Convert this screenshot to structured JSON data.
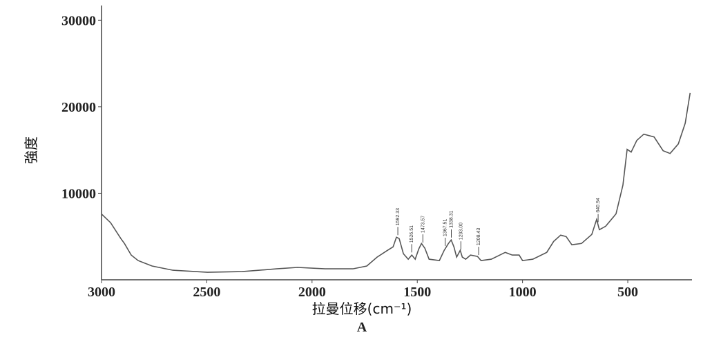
{
  "chart_data": {
    "type": "line",
    "ylabel": "強度",
    "xlabel": "拉曼位移(cm⁻¹)",
    "caption": "A",
    "color": "#555555",
    "xlim": [
      3000,
      195
    ],
    "ylim": [
      0,
      31700
    ],
    "xticks": [
      3000,
      2500,
      2000,
      1500,
      1000,
      500
    ],
    "yticks": [
      10000,
      20000,
      30000
    ],
    "x": [
      3000,
      2957,
      2908,
      2891,
      2859,
      2826,
      2760,
      2661,
      2497,
      2332,
      2168,
      2069,
      1938,
      1806,
      1740,
      1691,
      1641,
      1615,
      1599,
      1586,
      1566,
      1543,
      1526,
      1510,
      1493,
      1480,
      1464,
      1444,
      1395,
      1372,
      1352,
      1339,
      1326,
      1313,
      1296,
      1286,
      1270,
      1247,
      1214,
      1197,
      1148,
      1082,
      1049,
      1016,
      1000,
      951,
      885,
      852,
      819,
      793,
      766,
      720,
      671,
      648,
      635,
      605,
      556,
      523,
      503,
      484,
      457,
      424,
      375,
      332,
      299,
      260,
      227,
      204
    ],
    "values": [
      7600,
      6600,
      4760,
      4200,
      2860,
      2220,
      1590,
      1110,
      870,
      950,
      1270,
      1430,
      1270,
      1270,
      1590,
      2620,
      3410,
      3810,
      4920,
      4760,
      3020,
      2380,
      2860,
      2380,
      3570,
      4200,
      3650,
      2380,
      2220,
      3410,
      4200,
      4600,
      3810,
      2620,
      3410,
      2620,
      2380,
      2860,
      2700,
      2220,
      2380,
      3170,
      2860,
      2860,
      2220,
      2380,
      3170,
      4440,
      5160,
      5000,
      4050,
      4200,
      5240,
      6980,
      5790,
      6190,
      7620,
      10950,
      15080,
      14760,
      16110,
      16830,
      16510,
      14920,
      14600,
      15710,
      18100,
      21590
    ],
    "annotations": [
      {
        "value": 1592.33,
        "label": "1592.33"
      },
      {
        "value": 1526.51,
        "label": "1526.51"
      },
      {
        "value": 1473.57,
        "label": "1473.57"
      },
      {
        "value": 1367.51,
        "label": "1367.51"
      },
      {
        "value": 1338.31,
        "label": "1338.31"
      },
      {
        "value": 1293.0,
        "label": "1293.00"
      },
      {
        "value": 1208.43,
        "label": "1208.43"
      },
      {
        "value": 640.94,
        "label": "640.94"
      }
    ]
  }
}
